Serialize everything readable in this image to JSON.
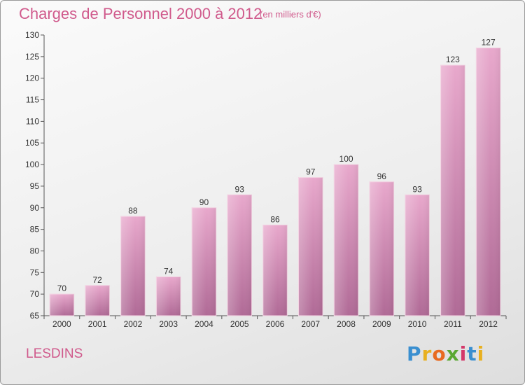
{
  "header": {
    "title": "Charges de Personnel 2000 à 2012",
    "subtitle": "(en milliers d'€)"
  },
  "footer": {
    "place": "LESDINS",
    "logo": [
      "P",
      "r",
      "o",
      "x",
      "i",
      "t",
      "i"
    ],
    "logo_colors": [
      "#3a8fd0",
      "#e8b020",
      "#e86a20",
      "#5aa832",
      "#d4386a",
      "#3a8fd0",
      "#e8b020"
    ]
  },
  "chart_data": {
    "type": "bar",
    "title": "Charges de Personnel 2000 à 2012",
    "subtitle": "(en milliers d'€)",
    "categories": [
      "2000",
      "2001",
      "2002",
      "2003",
      "2004",
      "2005",
      "2006",
      "2007",
      "2008",
      "2009",
      "2010",
      "2011",
      "2012"
    ],
    "values": [
      70,
      72,
      88,
      74,
      90,
      93,
      86,
      97,
      100,
      96,
      93,
      123,
      127
    ],
    "ylim": [
      65,
      130
    ],
    "yticks": [
      65,
      70,
      75,
      80,
      85,
      90,
      95,
      100,
      105,
      110,
      115,
      120,
      125,
      130
    ],
    "grid": false,
    "bar_color_top": "#e8a8cc",
    "bar_color_bottom": "#b06a96"
  }
}
